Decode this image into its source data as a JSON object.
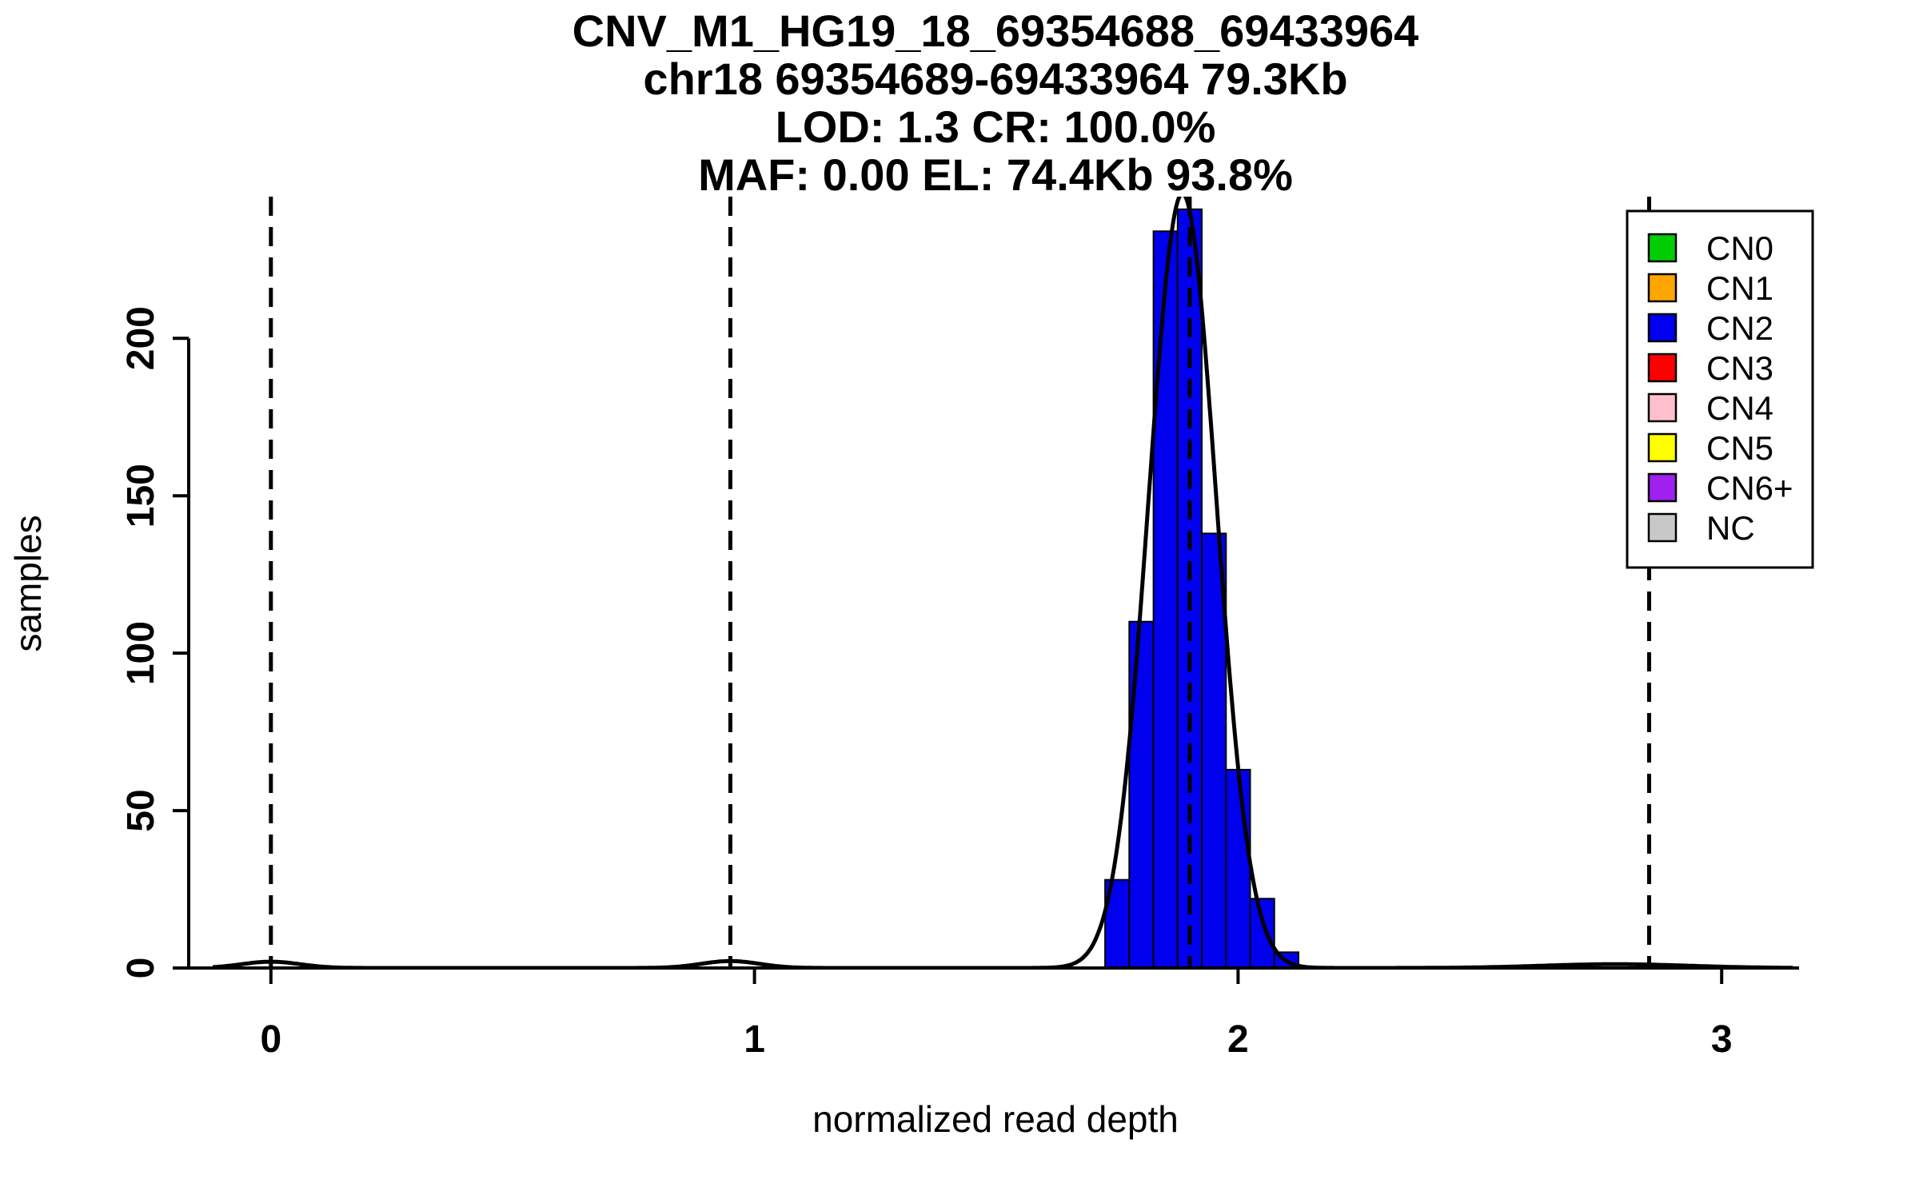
{
  "chart_data": {
    "type": "histogram",
    "title_lines": [
      "CNV_M1_HG19_18_69354688_69433964",
      "chr18 69354689-69433964 79.3Kb",
      "LOD: 1.3 CR: 100.0%",
      "MAF: 0.00 EL: 74.4Kb 93.8%"
    ],
    "xlabel": "normalized read depth",
    "ylabel": "samples",
    "x_ticks": [
      0,
      1,
      2,
      3
    ],
    "y_ticks": [
      0,
      50,
      100,
      150,
      200
    ],
    "xlim": [
      -0.17,
      3.16
    ],
    "ylim": [
      0,
      245
    ],
    "grid": false,
    "histogram": {
      "series_name": "CN2",
      "fill_color": "#0000EE",
      "stroke_color": "#000000",
      "bin_start": 1.725,
      "bin_width": 0.05,
      "counts": [
        28,
        110,
        234,
        241,
        138,
        63,
        22,
        5
      ]
    },
    "dashed_guides_x": [
      0,
      0.95,
      1.9,
      2.85
    ],
    "density_curve": {
      "color": "#000000",
      "x_range": [
        -0.12,
        3.15
      ],
      "components": [
        {
          "mean": 0.0,
          "sd": 0.06,
          "amplitude": 2.0
        },
        {
          "mean": 0.95,
          "sd": 0.06,
          "amplitude": 2.2
        },
        {
          "mean": 1.885,
          "sd": 0.07,
          "amplitude": 246
        },
        {
          "mean": 2.78,
          "sd": 0.15,
          "amplitude": 1.2
        }
      ]
    },
    "legend": {
      "position": "top-right",
      "items": [
        {
          "label": "CN0",
          "color": "#00CD00"
        },
        {
          "label": "CN1",
          "color": "#FFA500"
        },
        {
          "label": "CN2",
          "color": "#0000EE"
        },
        {
          "label": "CN3",
          "color": "#FF0000"
        },
        {
          "label": "CN4",
          "color": "#FFC0CB"
        },
        {
          "label": "CN5",
          "color": "#FFFF00"
        },
        {
          "label": "CN6+",
          "color": "#A020F0"
        },
        {
          "label": "NC",
          "color": "#C8C8C8"
        }
      ]
    }
  }
}
